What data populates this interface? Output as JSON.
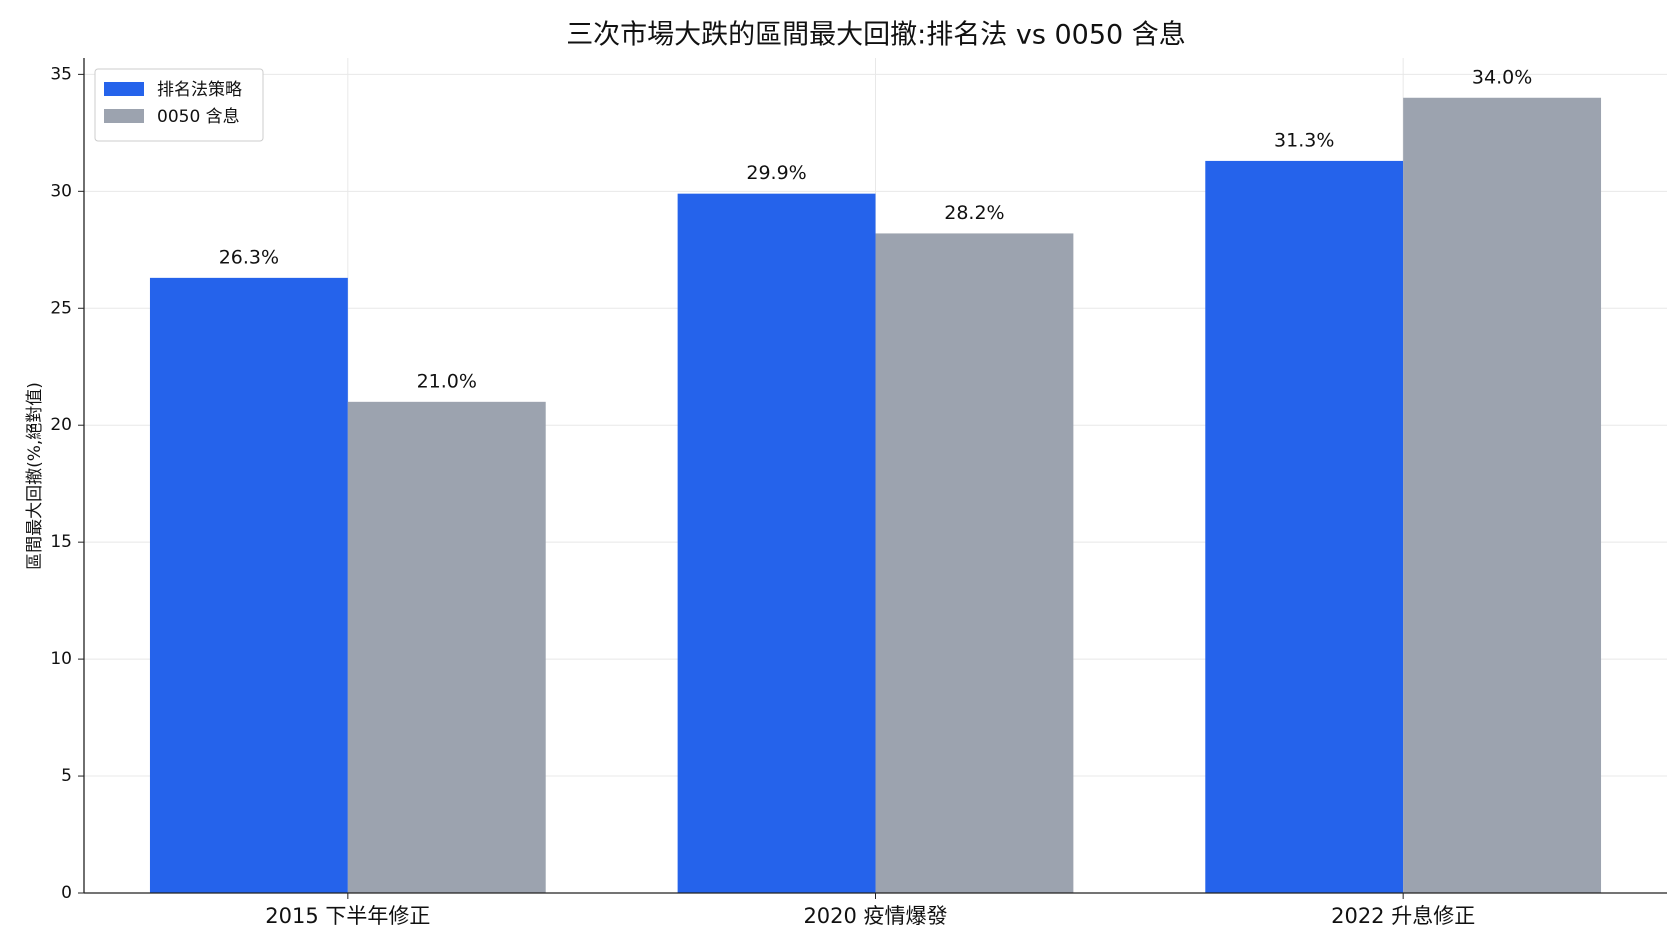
{
  "chart_data": {
    "type": "bar",
    "title": "三次市場大跌的區間最大回撤:排名法 vs 0050 含息",
    "y_label": "區間最大回撤(%,絕對值)",
    "categories": [
      "2015 下半年修正",
      "2020 疫情爆發",
      "2022 升息修正"
    ],
    "series": [
      {
        "name": "排名法策略",
        "color": "#2563eb",
        "values": [
          26.3,
          29.9,
          31.3
        ],
        "value_labels": [
          "26.3%",
          "29.9%",
          "31.3%"
        ]
      },
      {
        "name": "0050 含息",
        "color": "#9ca3af",
        "values": [
          21.0,
          28.2,
          34.0
        ],
        "value_labels": [
          "21.0%",
          "28.2%",
          "34.0%"
        ]
      }
    ],
    "ylim": [
      0,
      35.7
    ],
    "yticks": [
      0,
      5,
      10,
      15,
      20,
      25,
      30,
      35
    ],
    "grid": true,
    "legend": "upper-left"
  }
}
